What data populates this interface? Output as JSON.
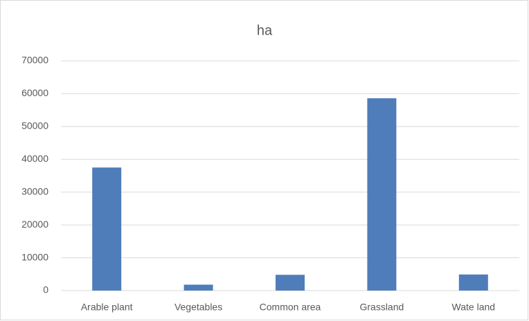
{
  "chart_data": {
    "type": "bar",
    "title": "ha",
    "categories": [
      "Arable plant",
      "Vegetables",
      "Common area",
      "Grassland",
      "Wate land"
    ],
    "values": [
      37500,
      1800,
      4800,
      58600,
      4900
    ],
    "color": "#4e7dba",
    "ylim": [
      0,
      70000
    ],
    "yticks": [
      0,
      10000,
      20000,
      30000,
      40000,
      50000,
      60000,
      70000
    ],
    "grid": true
  }
}
